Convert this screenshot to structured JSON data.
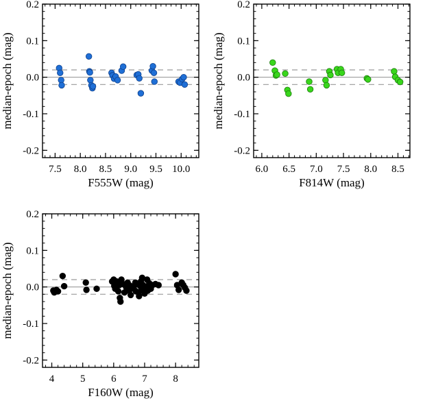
{
  "chart_data": [
    {
      "type": "scatter",
      "xlabel": "F555W (mag)",
      "ylabel": "median-epoch (mag)",
      "xlim": [
        7.25,
        10.35
      ],
      "ylim": [
        -0.22,
        0.2
      ],
      "xticks": [
        "7.5",
        "8.0",
        "8.5",
        "9.0",
        "9.5",
        "10.0"
      ],
      "xtick_values": [
        7.5,
        8.0,
        8.5,
        9.0,
        9.5,
        10.0
      ],
      "yticks": [
        "-0.2",
        "-0.1",
        "0.0",
        "0.1",
        "0.2"
      ],
      "ytick_values": [
        -0.2,
        -0.1,
        0.0,
        0.1,
        0.2
      ],
      "reference_lines": {
        "solid": 0.0,
        "dashed": [
          0.02,
          -0.02
        ]
      },
      "marker_color": "#1f6fd6",
      "marker_edge": "#0d3f8a",
      "points": [
        {
          "x": 7.58,
          "y": 0.025
        },
        {
          "x": 7.6,
          "y": 0.012
        },
        {
          "x": 7.62,
          "y": -0.008
        },
        {
          "x": 7.63,
          "y": -0.022
        },
        {
          "x": 8.17,
          "y": 0.057
        },
        {
          "x": 8.18,
          "y": 0.016
        },
        {
          "x": 8.19,
          "y": 0.013
        },
        {
          "x": 8.2,
          "y": -0.008
        },
        {
          "x": 8.22,
          "y": -0.022
        },
        {
          "x": 8.24,
          "y": -0.03
        },
        {
          "x": 8.25,
          "y": -0.025
        },
        {
          "x": 8.62,
          "y": 0.012
        },
        {
          "x": 8.64,
          "y": 0.005
        },
        {
          "x": 8.67,
          "y": -0.004
        },
        {
          "x": 8.7,
          "y": 0.002
        },
        {
          "x": 8.74,
          "y": -0.008
        },
        {
          "x": 8.82,
          "y": 0.018
        },
        {
          "x": 8.85,
          "y": 0.029
        },
        {
          "x": 9.12,
          "y": 0.006
        },
        {
          "x": 9.15,
          "y": 0.008
        },
        {
          "x": 9.17,
          "y": -0.003
        },
        {
          "x": 9.2,
          "y": -0.044
        },
        {
          "x": 9.42,
          "y": 0.018
        },
        {
          "x": 9.44,
          "y": 0.03
        },
        {
          "x": 9.46,
          "y": 0.012
        },
        {
          "x": 9.47,
          "y": -0.012
        },
        {
          "x": 9.95,
          "y": -0.012
        },
        {
          "x": 9.98,
          "y": -0.015
        },
        {
          "x": 10.02,
          "y": -0.005
        },
        {
          "x": 10.05,
          "y": 0.0
        },
        {
          "x": 10.07,
          "y": -0.02
        }
      ]
    },
    {
      "type": "scatter",
      "xlabel": "F814W (mag)",
      "ylabel": "median-epoch (mag)",
      "xlim": [
        5.85,
        8.72
      ],
      "ylim": [
        -0.22,
        0.2
      ],
      "xticks": [
        "6.0",
        "6.5",
        "7.0",
        "7.5",
        "8.0",
        "8.5"
      ],
      "xtick_values": [
        6.0,
        6.5,
        7.0,
        7.5,
        8.0,
        8.5
      ],
      "yticks": [
        "-0.2",
        "-0.1",
        "0.0",
        "0.1",
        "0.2"
      ],
      "ytick_values": [
        -0.2,
        -0.1,
        0.0,
        0.1,
        0.2
      ],
      "reference_lines": {
        "solid": 0.0,
        "dashed": [
          0.02,
          -0.02
        ]
      },
      "marker_color": "#39d61c",
      "marker_edge": "#1a7a0a",
      "points": [
        {
          "x": 6.2,
          "y": 0.04
        },
        {
          "x": 6.24,
          "y": 0.018
        },
        {
          "x": 6.26,
          "y": 0.005
        },
        {
          "x": 6.28,
          "y": 0.007
        },
        {
          "x": 6.43,
          "y": 0.01
        },
        {
          "x": 6.47,
          "y": -0.035
        },
        {
          "x": 6.49,
          "y": -0.045
        },
        {
          "x": 6.87,
          "y": -0.012
        },
        {
          "x": 6.89,
          "y": -0.033
        },
        {
          "x": 7.17,
          "y": -0.008
        },
        {
          "x": 7.19,
          "y": -0.022
        },
        {
          "x": 7.24,
          "y": 0.016
        },
        {
          "x": 7.26,
          "y": 0.006
        },
        {
          "x": 7.38,
          "y": 0.022
        },
        {
          "x": 7.4,
          "y": 0.012
        },
        {
          "x": 7.45,
          "y": 0.022
        },
        {
          "x": 7.47,
          "y": 0.012
        },
        {
          "x": 7.93,
          "y": -0.003
        },
        {
          "x": 7.95,
          "y": -0.006
        },
        {
          "x": 8.43,
          "y": 0.016
        },
        {
          "x": 8.45,
          "y": 0.001
        },
        {
          "x": 8.5,
          "y": -0.008
        },
        {
          "x": 8.54,
          "y": -0.013
        }
      ]
    },
    {
      "type": "scatter",
      "xlabel": "F160W (mag)",
      "ylabel": "median-epoch (mag)",
      "xlim": [
        3.7,
        8.75
      ],
      "ylim": [
        -0.22,
        0.2
      ],
      "xticks": [
        "4",
        "5",
        "6",
        "7",
        "8"
      ],
      "xtick_values": [
        4,
        5,
        6,
        7,
        8
      ],
      "yticks": [
        "-0.2",
        "-0.1",
        "0.0",
        "0.1",
        "0.2"
      ],
      "ytick_values": [
        -0.2,
        -0.1,
        0.0,
        0.1,
        0.2
      ],
      "reference_lines": {
        "solid": 0.0,
        "dashed": [
          0.02,
          -0.02
        ]
      },
      "marker_color": "#000000",
      "marker_edge": "#000000",
      "points": [
        {
          "x": 4.05,
          "y": -0.01
        },
        {
          "x": 4.08,
          "y": -0.015
        },
        {
          "x": 4.15,
          "y": -0.008
        },
        {
          "x": 4.2,
          "y": -0.012
        },
        {
          "x": 4.35,
          "y": 0.03
        },
        {
          "x": 4.4,
          "y": 0.002
        },
        {
          "x": 5.1,
          "y": 0.012
        },
        {
          "x": 5.12,
          "y": -0.008
        },
        {
          "x": 5.45,
          "y": -0.005
        },
        {
          "x": 5.95,
          "y": 0.015
        },
        {
          "x": 6.0,
          "y": 0.02
        },
        {
          "x": 6.02,
          "y": 0.003
        },
        {
          "x": 6.05,
          "y": -0.005
        },
        {
          "x": 6.08,
          "y": 0.01
        },
        {
          "x": 6.1,
          "y": 0.015
        },
        {
          "x": 6.15,
          "y": -0.012
        },
        {
          "x": 6.18,
          "y": 0.005
        },
        {
          "x": 6.2,
          "y": -0.03
        },
        {
          "x": 6.22,
          "y": -0.04
        },
        {
          "x": 6.25,
          "y": 0.02
        },
        {
          "x": 6.3,
          "y": 0.008
        },
        {
          "x": 6.35,
          "y": -0.015
        },
        {
          "x": 6.4,
          "y": 0.0
        },
        {
          "x": 6.45,
          "y": 0.012
        },
        {
          "x": 6.5,
          "y": -0.01
        },
        {
          "x": 6.52,
          "y": 0.004
        },
        {
          "x": 6.55,
          "y": -0.022
        },
        {
          "x": 6.6,
          "y": 0.0
        },
        {
          "x": 6.65,
          "y": -0.005
        },
        {
          "x": 6.7,
          "y": 0.012
        },
        {
          "x": 6.72,
          "y": -0.012
        },
        {
          "x": 6.75,
          "y": 0.008
        },
        {
          "x": 6.8,
          "y": -0.015
        },
        {
          "x": 6.82,
          "y": -0.025
        },
        {
          "x": 6.85,
          "y": 0.003
        },
        {
          "x": 6.88,
          "y": 0.015
        },
        {
          "x": 6.9,
          "y": -0.008
        },
        {
          "x": 6.92,
          "y": 0.025
        },
        {
          "x": 6.95,
          "y": 0.005
        },
        {
          "x": 7.0,
          "y": -0.018
        },
        {
          "x": 7.05,
          "y": 0.0
        },
        {
          "x": 7.08,
          "y": 0.02
        },
        {
          "x": 7.1,
          "y": -0.01
        },
        {
          "x": 7.15,
          "y": 0.01
        },
        {
          "x": 7.2,
          "y": -0.005
        },
        {
          "x": 7.25,
          "y": 0.005
        },
        {
          "x": 7.35,
          "y": 0.008
        },
        {
          "x": 7.45,
          "y": 0.005
        },
        {
          "x": 8.0,
          "y": 0.035
        },
        {
          "x": 8.05,
          "y": 0.005
        },
        {
          "x": 8.1,
          "y": -0.008
        },
        {
          "x": 8.2,
          "y": 0.012
        },
        {
          "x": 8.25,
          "y": 0.005
        },
        {
          "x": 8.3,
          "y": -0.002
        },
        {
          "x": 8.35,
          "y": -0.01
        }
      ]
    }
  ]
}
